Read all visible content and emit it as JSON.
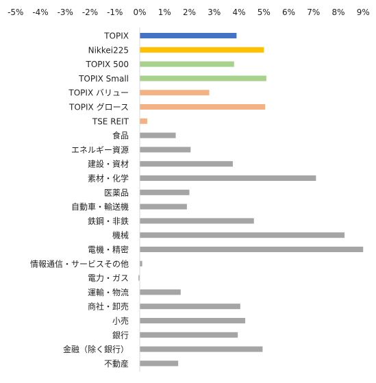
{
  "chart_data": {
    "type": "bar",
    "orientation": "horizontal",
    "categories": [
      "TOPIX",
      "Nikkei225",
      "TOPIX 500",
      "TOPIX Small",
      "TOPIX バリュー",
      "TOPIX グロース",
      "TSE REIT",
      "食品",
      "エネルギー資源",
      "建設・資材",
      "素材・化学",
      "医薬品",
      "自動車・輸送機",
      "鉄鋼・非鉄",
      "機械",
      "電機・精密",
      "情報通信・サービスその他",
      "電力・ガス",
      "運輸・物流",
      "商社・卸売",
      "小売",
      "銀行",
      "金融（除く銀行）",
      "不動産"
    ],
    "values": [
      3.9,
      5.0,
      3.8,
      5.1,
      2.8,
      5.05,
      0.3,
      1.45,
      2.05,
      3.75,
      7.1,
      2.0,
      1.9,
      4.6,
      8.25,
      9.0,
      0.1,
      -0.05,
      1.65,
      4.05,
      4.25,
      3.95,
      4.95,
      1.55
    ],
    "bar_colors": [
      "#4472C4",
      "#FFC000",
      "#A9D18E",
      "#A9D18E",
      "#F4B183",
      "#F4B183",
      "#F4B183",
      "#A5A5A5",
      "#A5A5A5",
      "#A5A5A5",
      "#A5A5A5",
      "#A5A5A5",
      "#A5A5A5",
      "#A5A5A5",
      "#A5A5A5",
      "#A5A5A5",
      "#A5A5A5",
      "#A5A5A5",
      "#A5A5A5",
      "#A5A5A5",
      "#A5A5A5",
      "#A5A5A5",
      "#A5A5A5",
      "#A5A5A5"
    ],
    "xlim": [
      -5,
      9
    ],
    "xticks": [
      -5,
      -4,
      -3,
      -2,
      -1,
      0,
      1,
      2,
      3,
      4,
      5,
      6,
      7,
      8,
      9
    ],
    "xtick_labels": [
      "-5%",
      "-4%",
      "-3%",
      "-2%",
      "-1%",
      "0%",
      "1%",
      "2%",
      "3%",
      "4%",
      "5%",
      "6%",
      "7%",
      "8%",
      "9%"
    ],
    "x_axis_position": "top",
    "grid": false,
    "legend": "none"
  }
}
